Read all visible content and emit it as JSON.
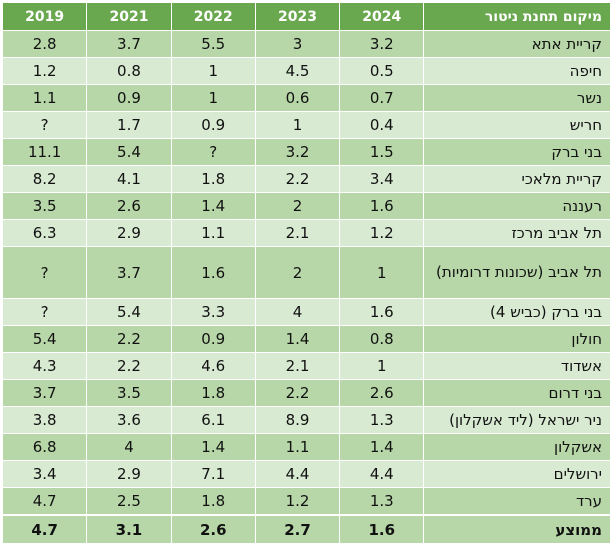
{
  "headers": {
    "location": "מיקום תחנת ניטור",
    "years": [
      "2024",
      "2023",
      "2022",
      "2021",
      "2019"
    ]
  },
  "rows": [
    {
      "loc": "קריית אתא",
      "v": [
        "3.2",
        "3",
        "5.5",
        "3.7",
        "2.8"
      ]
    },
    {
      "loc": "חיפה",
      "v": [
        "0.5",
        "4.5",
        "1",
        "0.8",
        "1.2"
      ]
    },
    {
      "loc": "נשר",
      "v": [
        "0.7",
        "0.6",
        "1",
        "0.9",
        "1.1"
      ]
    },
    {
      "loc": "חריש",
      "v": [
        "0.4",
        "1",
        "0.9",
        "1.7",
        "?"
      ]
    },
    {
      "loc": "בני ברק",
      "v": [
        "1.5",
        "3.2",
        "?",
        "5.4",
        "11.1"
      ]
    },
    {
      "loc": "קריית מלאכי",
      "v": [
        "3.4",
        "2.2",
        "1.8",
        "4.1",
        "8.2"
      ]
    },
    {
      "loc": "רעננה",
      "v": [
        "1.6",
        "2",
        "1.4",
        "2.6",
        "3.5"
      ]
    },
    {
      "loc": "תל אביב מרכז",
      "v": [
        "1.2",
        "2.1",
        "1.1",
        "2.9",
        "6.3"
      ]
    },
    {
      "loc": "תל אביב (שכונות דרומיות)",
      "v": [
        "1",
        "2",
        "1.6",
        "3.7",
        "?"
      ]
    },
    {
      "loc": "בני ברק (כביש 4)",
      "v": [
        "1.6",
        "4",
        "3.3",
        "5.4",
        "?"
      ]
    },
    {
      "loc": "חולון",
      "v": [
        "0.8",
        "1.4",
        "0.9",
        "2.2",
        "5.4"
      ]
    },
    {
      "loc": "אשדוד",
      "v": [
        "1",
        "2.1",
        "4.6",
        "2.2",
        "4.3"
      ]
    },
    {
      "loc": "בני דרום",
      "v": [
        "2.6",
        "2.2",
        "1.8",
        "3.5",
        "3.7"
      ]
    },
    {
      "loc": "ניר ישראל (ליד אשקלון)",
      "v": [
        "1.3",
        "8.9",
        "6.1",
        "3.6",
        "3.8"
      ]
    },
    {
      "loc": "אשקלון",
      "v": [
        "1.4",
        "1.1",
        "1.4",
        "4",
        "6.8"
      ]
    },
    {
      "loc": "ירושלים",
      "v": [
        "4.4",
        "4.4",
        "7.1",
        "2.9",
        "3.4"
      ]
    },
    {
      "loc": "ערד",
      "v": [
        "1.3",
        "1.2",
        "1.8",
        "2.5",
        "4.7"
      ]
    }
  ],
  "footer": {
    "loc": "ממוצע",
    "v": [
      "1.6",
      "2.7",
      "2.6",
      "3.1",
      "4.7"
    ]
  },
  "colors": {
    "header_bg": "#6aa84f",
    "row_dark": "#b7d7a8",
    "row_light": "#d9ead3"
  }
}
